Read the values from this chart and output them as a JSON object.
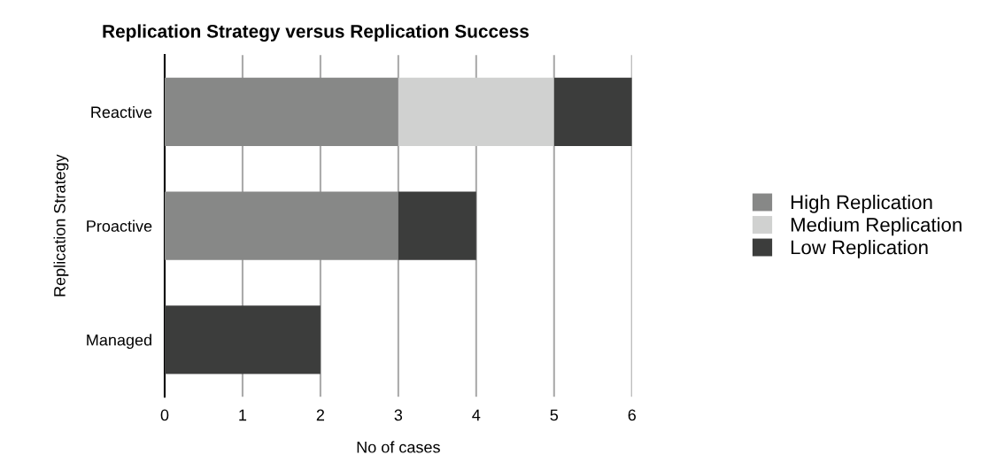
{
  "chart_data": {
    "type": "bar",
    "orientation": "horizontal",
    "stacked": true,
    "title": "Replication Strategy versus Replication Success",
    "xlabel": "No of cases",
    "ylabel": "Replication Strategy",
    "categories": [
      "Reactive",
      "Proactive",
      "Managed"
    ],
    "series": [
      {
        "name": "High Replication",
        "color": "#878887",
        "values": [
          3,
          3,
          0
        ]
      },
      {
        "name": "Medium Replication",
        "color": "#d0d1d0",
        "values": [
          2,
          0,
          0
        ]
      },
      {
        "name": "Low Replication",
        "color": "#3c3d3c",
        "values": [
          1,
          1,
          2
        ]
      }
    ],
    "xlim": [
      0,
      6
    ],
    "xticks": [
      0,
      1,
      2,
      3,
      4,
      5,
      6
    ],
    "grid": "x",
    "legend": "right"
  }
}
